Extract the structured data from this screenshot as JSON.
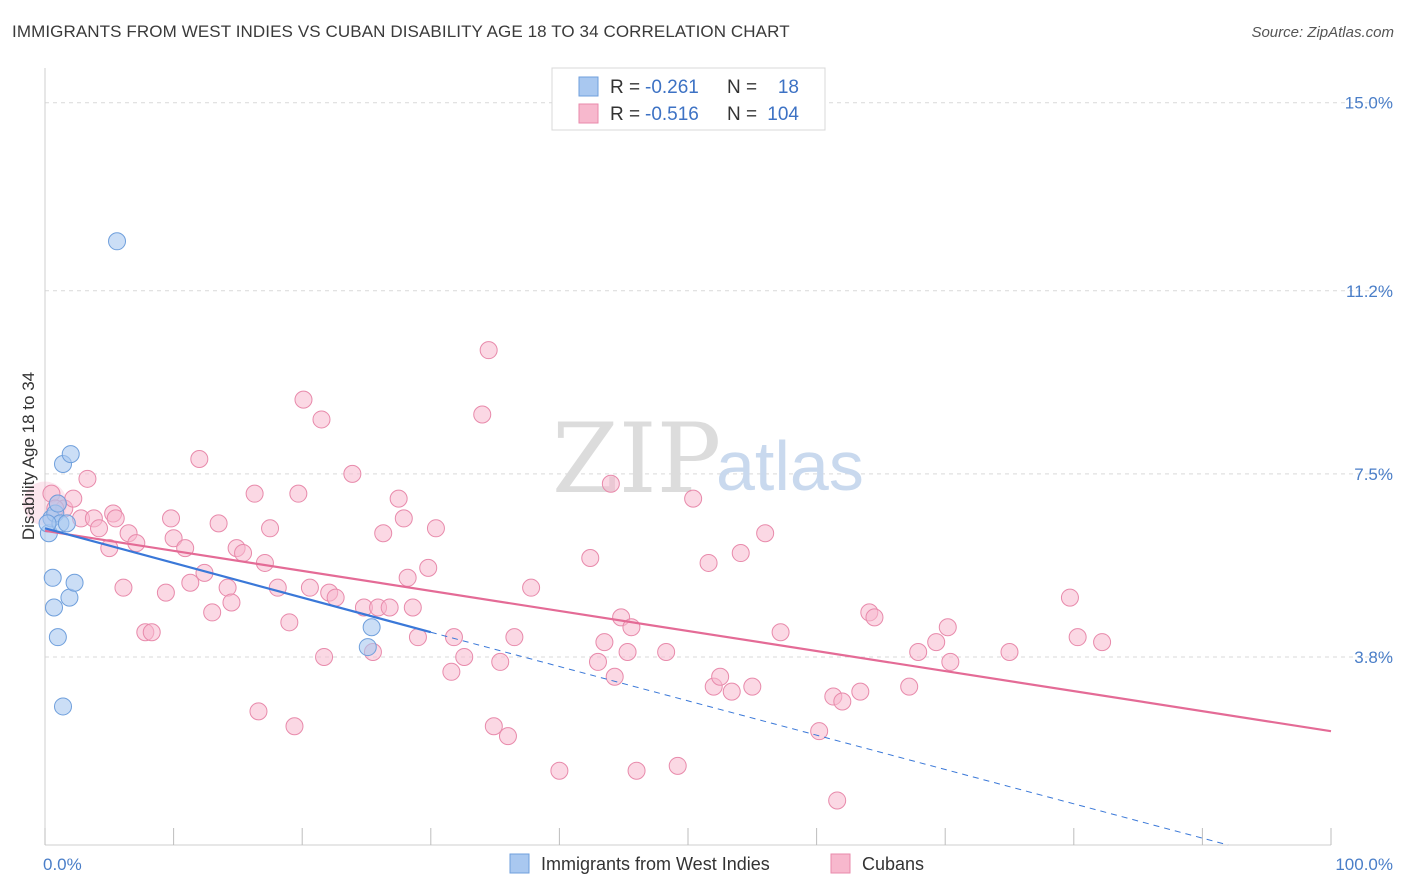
{
  "header": {
    "title": "IMMIGRANTS FROM WEST INDIES VS CUBAN DISABILITY AGE 18 TO 34 CORRELATION CHART",
    "source": "Source: ZipAtlas.com"
  },
  "watermark": {
    "zip": "ZIP",
    "atlas": "atlas"
  },
  "colors": {
    "blue_fill": "#a9c8f0",
    "blue_stroke": "#6f9fdc",
    "blue_line": "#3a78d8",
    "pink_fill": "#f7b8cd",
    "pink_stroke": "#e88aab",
    "pink_line": "#e46b96",
    "grid": "#d9d9d9",
    "tick_text": "#4a7ec8"
  },
  "legend": {
    "rows": [
      {
        "r_label": "R = ",
        "r_value": "-0.261",
        "n_label": "N = ",
        "n_value": "18"
      },
      {
        "r_label": "R = ",
        "r_value": "-0.516",
        "n_label": "N = ",
        "n_value": "104"
      }
    ]
  },
  "bottom_legend": [
    "Immigrants from West Indies",
    "Cubans"
  ],
  "chart_data": {
    "type": "scatter",
    "title": "IMMIGRANTS FROM WEST INDIES VS CUBAN DISABILITY AGE 18 TO 34 CORRELATION CHART",
    "xlabel": "",
    "ylabel": "Disability Age 18 to 34",
    "xlim": [
      0,
      100
    ],
    "ylim": [
      0,
      15.5
    ],
    "x_tick_labels": [
      {
        "value": 0,
        "label": "0.0%"
      },
      {
        "value": 100,
        "label": "100.0%"
      }
    ],
    "x_minor_ticks": [
      0,
      10,
      20,
      30,
      40,
      50,
      60,
      70,
      80,
      90,
      100
    ],
    "y_ticks": [
      {
        "value": 3.8,
        "label": "3.8%"
      },
      {
        "value": 7.5,
        "label": "7.5%"
      },
      {
        "value": 11.2,
        "label": "11.2%"
      },
      {
        "value": 15.0,
        "label": "15.0%"
      }
    ],
    "series": [
      {
        "name": "Immigrants from West Indies",
        "color": "#a9c8f0",
        "r": -0.261,
        "n": 18,
        "points": [
          [
            0.3,
            6.3
          ],
          [
            0.5,
            6.6
          ],
          [
            0.6,
            5.4
          ],
          [
            0.7,
            4.8
          ],
          [
            0.8,
            6.7
          ],
          [
            1.0,
            6.9
          ],
          [
            1.0,
            4.2
          ],
          [
            1.2,
            6.5
          ],
          [
            1.4,
            7.7
          ],
          [
            1.4,
            2.8
          ],
          [
            1.7,
            6.5
          ],
          [
            1.9,
            5.0
          ],
          [
            2.0,
            7.9
          ],
          [
            2.3,
            5.3
          ],
          [
            5.6,
            12.2
          ],
          [
            25.4,
            4.4
          ],
          [
            25.1,
            4.0
          ],
          [
            0.2,
            6.5
          ]
        ],
        "trend": {
          "x": [
            0,
            30
          ],
          "y": [
            6.4,
            4.3
          ]
        },
        "trend_extension": {
          "x": [
            30,
            92
          ],
          "y": [
            4.3,
            0.0
          ]
        }
      },
      {
        "name": "Cubans",
        "color": "#f7b8cd",
        "r": -0.516,
        "n": 104,
        "points": [
          [
            0.5,
            7.1
          ],
          [
            1.0,
            6.9
          ],
          [
            1.5,
            6.8
          ],
          [
            2.2,
            7.0
          ],
          [
            2.8,
            6.6
          ],
          [
            3.3,
            7.4
          ],
          [
            3.8,
            6.6
          ],
          [
            4.2,
            6.4
          ],
          [
            5.0,
            6.0
          ],
          [
            5.3,
            6.7
          ],
          [
            5.5,
            6.6
          ],
          [
            6.1,
            5.2
          ],
          [
            6.5,
            6.3
          ],
          [
            7.1,
            6.1
          ],
          [
            7.8,
            4.3
          ],
          [
            8.3,
            4.3
          ],
          [
            9.4,
            5.1
          ],
          [
            9.8,
            6.6
          ],
          [
            10.0,
            6.2
          ],
          [
            10.9,
            6.0
          ],
          [
            11.3,
            5.3
          ],
          [
            12.0,
            7.8
          ],
          [
            12.4,
            5.5
          ],
          [
            13.0,
            4.7
          ],
          [
            13.5,
            6.5
          ],
          [
            14.2,
            5.2
          ],
          [
            14.5,
            4.9
          ],
          [
            14.9,
            6.0
          ],
          [
            15.4,
            5.9
          ],
          [
            16.3,
            7.1
          ],
          [
            16.6,
            2.7
          ],
          [
            17.1,
            5.7
          ],
          [
            17.5,
            6.4
          ],
          [
            18.1,
            5.2
          ],
          [
            19.0,
            4.5
          ],
          [
            19.4,
            2.4
          ],
          [
            19.7,
            7.1
          ],
          [
            20.1,
            9.0
          ],
          [
            20.6,
            5.2
          ],
          [
            21.5,
            8.6
          ],
          [
            21.7,
            3.8
          ],
          [
            22.1,
            5.1
          ],
          [
            22.6,
            5.0
          ],
          [
            23.9,
            7.5
          ],
          [
            24.8,
            4.8
          ],
          [
            25.5,
            3.9
          ],
          [
            25.9,
            4.8
          ],
          [
            26.3,
            6.3
          ],
          [
            26.8,
            4.8
          ],
          [
            27.5,
            7.0
          ],
          [
            27.9,
            6.6
          ],
          [
            28.2,
            5.4
          ],
          [
            28.6,
            4.8
          ],
          [
            29.0,
            4.2
          ],
          [
            29.8,
            5.6
          ],
          [
            30.4,
            6.4
          ],
          [
            31.6,
            3.5
          ],
          [
            31.8,
            4.2
          ],
          [
            32.6,
            3.8
          ],
          [
            34.0,
            8.7
          ],
          [
            34.5,
            10.0
          ],
          [
            34.9,
            2.4
          ],
          [
            35.4,
            3.7
          ],
          [
            36.0,
            2.2
          ],
          [
            36.5,
            4.2
          ],
          [
            37.8,
            5.2
          ],
          [
            40.0,
            1.5
          ],
          [
            42.4,
            5.8
          ],
          [
            43.0,
            3.7
          ],
          [
            43.5,
            4.1
          ],
          [
            44.0,
            7.3
          ],
          [
            44.3,
            3.4
          ],
          [
            44.8,
            4.6
          ],
          [
            45.3,
            3.9
          ],
          [
            45.6,
            4.4
          ],
          [
            46.0,
            1.5
          ],
          [
            48.3,
            3.9
          ],
          [
            49.2,
            1.6
          ],
          [
            50.4,
            7.0
          ],
          [
            51.6,
            5.7
          ],
          [
            52.0,
            3.2
          ],
          [
            52.5,
            3.4
          ],
          [
            53.4,
            3.1
          ],
          [
            54.1,
            5.9
          ],
          [
            55.0,
            3.2
          ],
          [
            56.0,
            6.3
          ],
          [
            57.2,
            4.3
          ],
          [
            60.2,
            2.3
          ],
          [
            61.3,
            3.0
          ],
          [
            61.6,
            0.9
          ],
          [
            62.0,
            2.9
          ],
          [
            63.4,
            3.1
          ],
          [
            64.1,
            4.7
          ],
          [
            64.5,
            4.6
          ],
          [
            67.2,
            3.2
          ],
          [
            67.9,
            3.9
          ],
          [
            69.3,
            4.1
          ],
          [
            70.2,
            4.4
          ],
          [
            70.4,
            3.7
          ],
          [
            75.0,
            3.9
          ],
          [
            79.7,
            5.0
          ],
          [
            80.3,
            4.2
          ],
          [
            82.2,
            4.1
          ],
          [
            0.8,
            6.8
          ]
        ],
        "trend": {
          "x": [
            0,
            100
          ],
          "y": [
            6.35,
            2.3
          ]
        }
      }
    ]
  }
}
